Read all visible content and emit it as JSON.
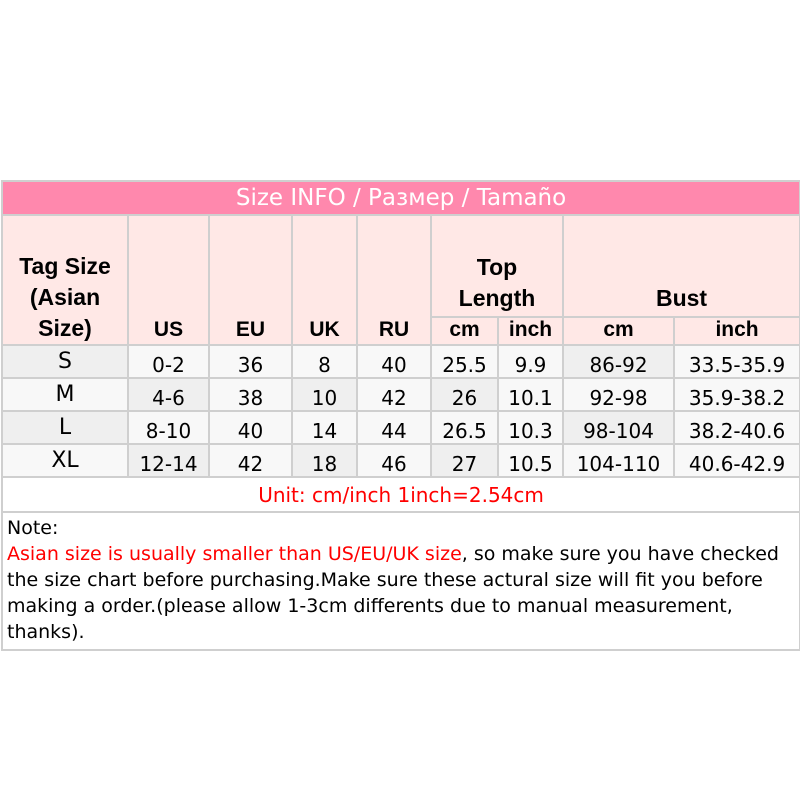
{
  "title": "Size INFO / Размер / Tamaño",
  "headers": {
    "tag_size": [
      "Tag Size",
      "(Asian",
      "Size)"
    ],
    "us": "US",
    "eu": "EU",
    "uk": "UK",
    "ru": "RU",
    "top_length": [
      "Top",
      "Length"
    ],
    "bust": "Bust",
    "top_cm": "cm",
    "top_inch": "inch",
    "bust_cm": "cm",
    "bust_inch": "inch"
  },
  "rows": [
    {
      "size": "S",
      "us": "0-2",
      "eu": "36",
      "uk": "8",
      "ru": "40",
      "top_cm": "25.5",
      "top_inch": "9.9",
      "bust_cm": "86-92",
      "bust_inch": "33.5-35.9"
    },
    {
      "size": "M",
      "us": "4-6",
      "eu": "38",
      "uk": "10",
      "ru": "42",
      "top_cm": "26",
      "top_inch": "10.1",
      "bust_cm": "92-98",
      "bust_inch": "35.9-38.2"
    },
    {
      "size": "L",
      "us": "8-10",
      "eu": "40",
      "uk": "14",
      "ru": "44",
      "top_cm": "26.5",
      "top_inch": "10.3",
      "bust_cm": "98-104",
      "bust_inch": "38.2-40.6"
    },
    {
      "size": "XL",
      "us": "12-14",
      "eu": "42",
      "uk": "18",
      "ru": "46",
      "top_cm": "27",
      "top_inch": "10.5",
      "bust_cm": "104-110",
      "bust_inch": "40.6-42.9"
    }
  ],
  "unit": "Unit: cm/inch 1inch=2.54cm",
  "note": {
    "label": "Note:",
    "warning": "Asian size is usually smaller than US/EU/UK size",
    "text": ", so make sure you have checked the size chart before purchasing.Make sure these actural size will fit you before making a order.(please allow 1-3cm differents due to manual measurement, thanks)."
  },
  "colors": {
    "title_bg": "#ff88ad",
    "header_bg": "#ffe8e6",
    "warning": "#ff0000"
  }
}
